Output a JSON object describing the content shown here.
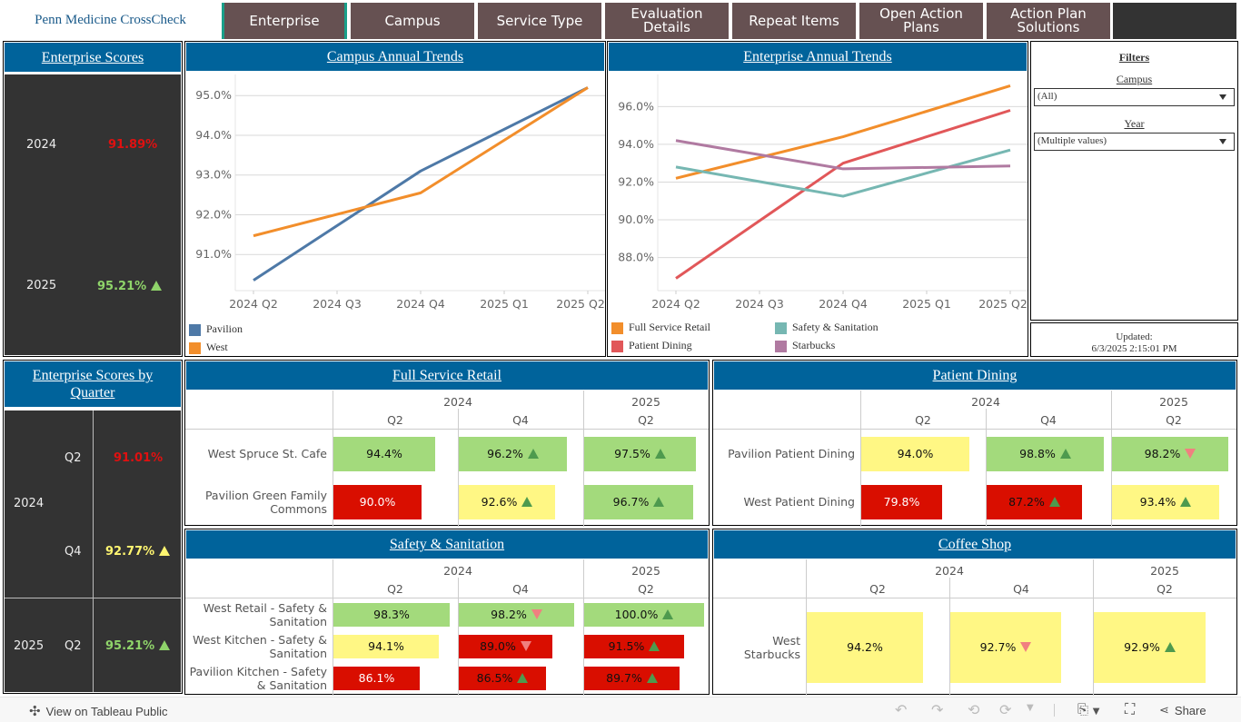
{
  "header": {
    "brand": "Penn Medicine CrossCheck",
    "tabs": [
      {
        "label": "Enterprise",
        "active": true
      },
      {
        "label": "Campus",
        "active": false
      },
      {
        "label": "Service Type",
        "active": false
      },
      {
        "label": "Evaluation Details",
        "active": false
      },
      {
        "label": "Repeat Items",
        "active": false
      },
      {
        "label": "Open Action Plans",
        "active": false
      },
      {
        "label": "Action Plan Solutions",
        "active": false
      }
    ]
  },
  "colors": {
    "header_blue": "#00639b",
    "green_cell": "#a3da7c",
    "yellow_cell": "#fff784",
    "red_cell": "#d90e00",
    "up_arrow": "#4e9a4e",
    "down_arrow": "#f08080",
    "score_red": "#e01010",
    "score_green": "#8fd46a",
    "score_yellow": "#fff570",
    "tab_bg": "#665152",
    "active_tab_border": "#19a08a"
  },
  "enterprise_scores": {
    "title": "Enterprise Scores",
    "rows": [
      {
        "year": "2024",
        "value": "91.89%",
        "status": "red",
        "trend": ""
      },
      {
        "year": "2025",
        "value": "95.21%",
        "status": "green",
        "trend": "up"
      }
    ]
  },
  "enterprise_by_quarter": {
    "title": "Enterprise Scores by Quarter",
    "rows": [
      {
        "year": "2024",
        "quarter": "Q2",
        "value": "91.01%",
        "status": "red",
        "trend": ""
      },
      {
        "year": "2024",
        "quarter": "Q4",
        "value": "92.77%",
        "status": "yellow",
        "trend": "up"
      },
      {
        "year": "2025",
        "quarter": "Q2",
        "value": "95.21%",
        "status": "green",
        "trend": "up"
      }
    ]
  },
  "chart_data": [
    {
      "id": "campus",
      "type": "line",
      "title": "Campus Annual Trends",
      "xlabel": "",
      "ylabel": "",
      "x": [
        "2024 Q2",
        "2024 Q3",
        "2024 Q4",
        "2025 Q1",
        "2025 Q2"
      ],
      "yticks": [
        91.0,
        92.0,
        93.0,
        94.0,
        95.0
      ],
      "ylim": [
        90.09,
        95.53
      ],
      "grid": true,
      "legend": "bottom-left",
      "series": [
        {
          "name": "Pavilion",
          "color": "#4e79a7",
          "points": [
            {
              "x": "2024 Q2",
              "y": 90.35
            },
            {
              "x": "2024 Q4",
              "y": 93.1
            },
            {
              "x": "2025 Q2",
              "y": 95.2
            }
          ]
        },
        {
          "name": "West",
          "color": "#f28e2b",
          "points": [
            {
              "x": "2024 Q2",
              "y": 91.47
            },
            {
              "x": "2024 Q4",
              "y": 92.55
            },
            {
              "x": "2025 Q2",
              "y": 95.2
            }
          ]
        }
      ]
    },
    {
      "id": "enterprise",
      "type": "line",
      "title": "Enterprise Annual Trends",
      "xlabel": "",
      "ylabel": "",
      "x": [
        "2024 Q2",
        "2024 Q3",
        "2024 Q4",
        "2025 Q1",
        "2025 Q2"
      ],
      "yticks": [
        88.0,
        90.0,
        92.0,
        94.0,
        96.0
      ],
      "ylim": [
        86.25,
        97.7
      ],
      "grid": true,
      "legend": "bottom",
      "series": [
        {
          "name": "Full Service Retail",
          "color": "#f28e2b",
          "points": [
            {
              "x": "2024 Q2",
              "y": 92.2
            },
            {
              "x": "2024 Q4",
              "y": 94.4
            },
            {
              "x": "2025 Q2",
              "y": 97.1
            }
          ]
        },
        {
          "name": "Patient Dining",
          "color": "#e15759",
          "points": [
            {
              "x": "2024 Q2",
              "y": 86.9
            },
            {
              "x": "2024 Q4",
              "y": 93.0
            },
            {
              "x": "2025 Q2",
              "y": 95.8
            }
          ]
        },
        {
          "name": "Safety & Sanitation",
          "color": "#76b7b2",
          "points": [
            {
              "x": "2024 Q2",
              "y": 92.8
            },
            {
              "x": "2024 Q4",
              "y": 91.25
            },
            {
              "x": "2025 Q2",
              "y": 93.7
            }
          ]
        },
        {
          "name": "Starbucks",
          "color": "#b07aa1",
          "points": [
            {
              "x": "2024 Q2",
              "y": 94.2
            },
            {
              "x": "2024 Q4",
              "y": 92.7
            },
            {
              "x": "2025 Q2",
              "y": 92.85
            }
          ]
        }
      ]
    }
  ],
  "filters": {
    "title": "Filters",
    "campus_label": "Campus",
    "campus_value": "(All)",
    "year_label": "Year",
    "year_value": "(Multiple values)",
    "updated_label": "Updated:",
    "updated_value": "6/3/2025 2:15:01 PM"
  },
  "tables": {
    "columns": {
      "years": [
        "2024",
        "2025"
      ],
      "quarters": [
        "Q2",
        "Q4",
        "Q2"
      ]
    },
    "full_service_retail": {
      "title": "Full Service Retail",
      "rows": [
        {
          "name": "West Spruce St. Cafe",
          "cells": [
            {
              "value": "94.4%",
              "pct": 94.4,
              "status": "green",
              "trend": ""
            },
            {
              "value": "96.2%",
              "pct": 96.2,
              "status": "green",
              "trend": "up"
            },
            {
              "value": "97.5%",
              "pct": 97.5,
              "status": "green",
              "trend": "up"
            }
          ]
        },
        {
          "name": "Pavilion Green Family Commons",
          "cells": [
            {
              "value": "90.0%",
              "pct": 90.0,
              "status": "red",
              "trend": ""
            },
            {
              "value": "92.6%",
              "pct": 92.6,
              "status": "yellow",
              "trend": "up"
            },
            {
              "value": "96.7%",
              "pct": 96.7,
              "status": "green",
              "trend": "up"
            }
          ]
        }
      ]
    },
    "patient_dining": {
      "title": "Patient Dining",
      "rows": [
        {
          "name": "Pavilion Patient Dining",
          "cells": [
            {
              "value": "94.0%",
              "pct": 94.0,
              "status": "yellow",
              "trend": ""
            },
            {
              "value": "98.8%",
              "pct": 98.8,
              "status": "green",
              "trend": "up"
            },
            {
              "value": "98.2%",
              "pct": 98.2,
              "status": "green",
              "trend": "down"
            }
          ]
        },
        {
          "name": "West Patient Dining",
          "cells": [
            {
              "value": "79.8%",
              "pct": 79.8,
              "status": "red",
              "trend": ""
            },
            {
              "value": "87.2%",
              "pct": 87.2,
              "status": "red",
              "trend": "up"
            },
            {
              "value": "93.4%",
              "pct": 93.4,
              "status": "yellow",
              "trend": "up"
            }
          ]
        }
      ]
    },
    "safety_sanitation": {
      "title": "Safety & Sanitation",
      "rows": [
        {
          "name": "West Retail - Safety & Sanitation",
          "cells": [
            {
              "value": "98.3%",
              "pct": 98.3,
              "status": "green",
              "trend": ""
            },
            {
              "value": "98.2%",
              "pct": 98.2,
              "status": "green",
              "trend": "down"
            },
            {
              "value": "100.0%",
              "pct": 100.0,
              "status": "green",
              "trend": "up"
            }
          ]
        },
        {
          "name": "West Kitchen - Safety & Sanitation",
          "cells": [
            {
              "value": "94.1%",
              "pct": 94.1,
              "status": "yellow",
              "trend": ""
            },
            {
              "value": "89.0%",
              "pct": 89.0,
              "status": "red",
              "trend": "down"
            },
            {
              "value": "91.5%",
              "pct": 91.5,
              "status": "red",
              "trend": "up"
            }
          ]
        },
        {
          "name": "Pavilion Kitchen - Safety & Sanitation",
          "cells": [
            {
              "value": "86.1%",
              "pct": 86.1,
              "status": "red",
              "trend": ""
            },
            {
              "value": "86.5%",
              "pct": 86.5,
              "status": "red",
              "trend": "up"
            },
            {
              "value": "89.7%",
              "pct": 89.7,
              "status": "red",
              "trend": "up"
            }
          ]
        }
      ]
    },
    "coffee_shop": {
      "title": "Coffee Shop",
      "rows": [
        {
          "name": "West Starbucks",
          "cells": [
            {
              "value": "94.2%",
              "pct": 94.2,
              "status": "yellow",
              "trend": ""
            },
            {
              "value": "92.7%",
              "pct": 92.7,
              "status": "yellow",
              "trend": "down"
            },
            {
              "value": "92.9%",
              "pct": 92.9,
              "status": "yellow",
              "trend": "up"
            }
          ]
        }
      ]
    }
  },
  "footer": {
    "view_label": "View on Tableau Public",
    "share_label": "Share",
    "icons": [
      "undo-icon",
      "redo-icon",
      "revert-icon",
      "refresh-icon",
      "download-icon",
      "fullscreen-icon",
      "share-icon"
    ]
  }
}
